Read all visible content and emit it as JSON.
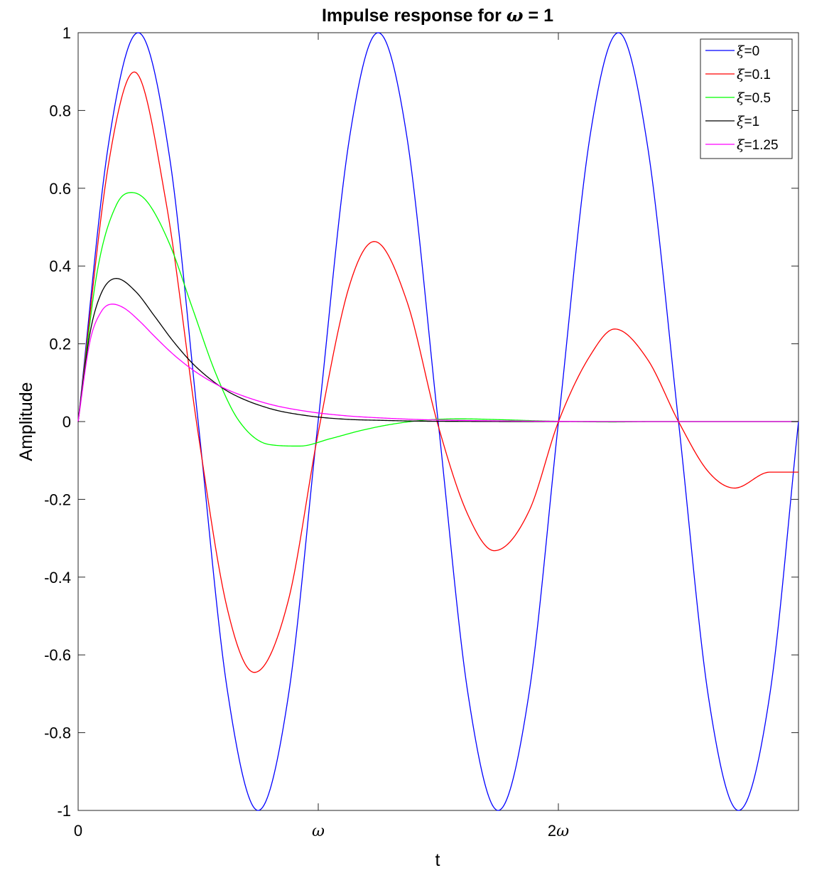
{
  "chart_data": {
    "type": "line",
    "title_prefix": "Impulse response for ",
    "title_symbol": "ω",
    "title_suffix": " = 1",
    "xlabel": "t",
    "ylabel": "Amplitude",
    "xlim": [
      0,
      18.85
    ],
    "ylim": [
      -1,
      1
    ],
    "xticks": [
      {
        "value": 0,
        "label": "0",
        "italic": false
      },
      {
        "value": 6.2832,
        "label": "ω",
        "italic": true
      },
      {
        "value": 12.5664,
        "label": "2ω",
        "italic": true
      }
    ],
    "yticks": [
      {
        "value": -1,
        "label": "-1"
      },
      {
        "value": -0.8,
        "label": "-0.8"
      },
      {
        "value": -0.6,
        "label": "-0.6"
      },
      {
        "value": -0.4,
        "label": "-0.4"
      },
      {
        "value": -0.2,
        "label": "-0.2"
      },
      {
        "value": 0,
        "label": "0"
      },
      {
        "value": 0.2,
        "label": "0.2"
      },
      {
        "value": 0.4,
        "label": "0.4"
      },
      {
        "value": 0.6,
        "label": "0.6"
      },
      {
        "value": 0.8,
        "label": "0.8"
      },
      {
        "value": 1,
        "label": "1"
      }
    ],
    "grid": false,
    "legend_position": "top-right",
    "series": [
      {
        "name": "ξ=0",
        "color": "#0000ff",
        "x": [
          0,
          0.8,
          1.57,
          2.4,
          3.14,
          3.9,
          4.71,
          5.5,
          6.28,
          7.1,
          7.85,
          8.6,
          9.42,
          10.2,
          10.99,
          11.8,
          12.57,
          13.4,
          14.14,
          14.9,
          15.71,
          16.5,
          17.28,
          18.1,
          18.85
        ],
        "y": [
          0,
          0.717,
          1,
          0.675,
          0,
          -0.688,
          -1,
          -0.706,
          0,
          0.729,
          1,
          0.734,
          0,
          -0.699,
          -1,
          -0.698,
          0,
          0.737,
          1,
          0.709,
          0,
          -0.712,
          -1,
          -0.702,
          0
        ]
      },
      {
        "name": "ξ=0.1",
        "color": "#ff0000",
        "x": [
          0,
          0.8,
          1.47,
          2.3,
          3.14,
          3.9,
          4.61,
          5.5,
          6.28,
          7.1,
          7.75,
          8.6,
          9.42,
          10.2,
          10.89,
          11.8,
          12.57,
          13.4,
          14.04,
          14.9,
          15.71,
          16.5,
          17.18,
          18.1,
          18.85
        ],
        "y": [
          0,
          0.665,
          0.899,
          0.564,
          -0.03,
          -0.48,
          -0.645,
          -0.46,
          -0.03,
          0.35,
          0.463,
          0.31,
          -0.01,
          -0.24,
          -0.332,
          -0.23,
          0,
          0.17,
          0.238,
          0.16,
          0,
          -0.13,
          -0.171,
          -0.13,
          -0.13
        ]
      },
      {
        "name": "ξ=0.5",
        "color": "#00ff00",
        "x": [
          0,
          0.5,
          1.0,
          1.4,
          1.8,
          2.4,
          3.0,
          3.6,
          4.2,
          5.0,
          5.8,
          6.6,
          7.4,
          8.2,
          9.0,
          10.0,
          11.0,
          12.0,
          13.0,
          14.0,
          15.0,
          16.0,
          17.0,
          18.0,
          18.85
        ],
        "y": [
          0,
          0.386,
          0.557,
          0.589,
          0.566,
          0.455,
          0.289,
          0.124,
          0.003,
          -0.059,
          -0.063,
          -0.044,
          -0.023,
          -0.007,
          0.003,
          0.007,
          0.005,
          0.002,
          0,
          -0.001,
          0,
          0,
          0,
          0,
          0
        ]
      },
      {
        "name": "ξ=1",
        "color": "#000000",
        "x": [
          0,
          0.3,
          0.6,
          1.0,
          1.5,
          2.0,
          2.5,
          3.0,
          3.5,
          4.0,
          5.0,
          6.0,
          7.0,
          8.0,
          9.0,
          10.0,
          12.0,
          14.0,
          16.0,
          18.85
        ],
        "y": [
          0,
          0.222,
          0.329,
          0.368,
          0.335,
          0.271,
          0.205,
          0.149,
          0.106,
          0.073,
          0.034,
          0.015,
          0.006,
          0.003,
          0.001,
          0.0005,
          0,
          0,
          0,
          0
        ]
      },
      {
        "name": "ξ=1.25",
        "color": "#ff00ff",
        "x": [
          0,
          0.3,
          0.6,
          0.9,
          1.2,
          1.6,
          2.0,
          2.5,
          3.0,
          3.5,
          4.0,
          5.0,
          6.0,
          7.0,
          8.0,
          9.0,
          10.0,
          12.0,
          14.0,
          16.0,
          18.85
        ],
        "y": [
          0,
          0.202,
          0.282,
          0.302,
          0.292,
          0.259,
          0.219,
          0.172,
          0.133,
          0.102,
          0.078,
          0.045,
          0.026,
          0.015,
          0.009,
          0.005,
          0.003,
          0.001,
          0,
          0,
          0
        ]
      }
    ]
  }
}
